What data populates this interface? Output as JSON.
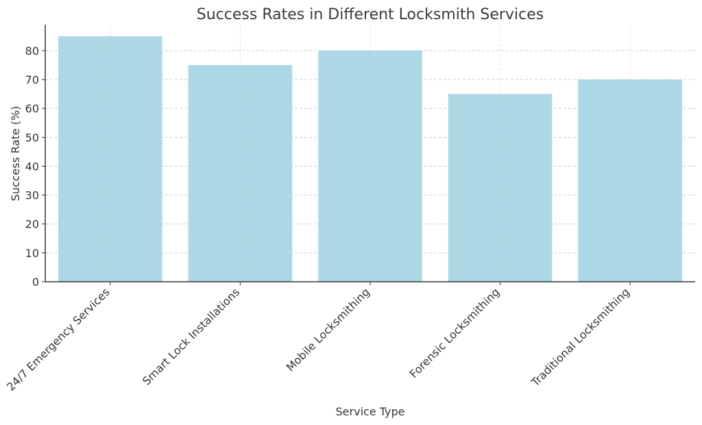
{
  "chart_data": {
    "type": "bar",
    "title": "Success Rates in Different Locksmith Services",
    "xlabel": "Service Type",
    "ylabel": "Success Rate (%)",
    "categories": [
      "24/7 Emergency Services",
      "Smart Lock Installations",
      "Mobile Locksmithing",
      "Forensic Locksmithing",
      "Traditional Locksmithing"
    ],
    "values": [
      85,
      75,
      80,
      65,
      70
    ],
    "ylim": [
      0,
      89
    ],
    "yticks": [
      0,
      10,
      20,
      30,
      40,
      50,
      60,
      70,
      80
    ],
    "grid": true,
    "colors": {
      "bar": "#add8e6"
    }
  }
}
